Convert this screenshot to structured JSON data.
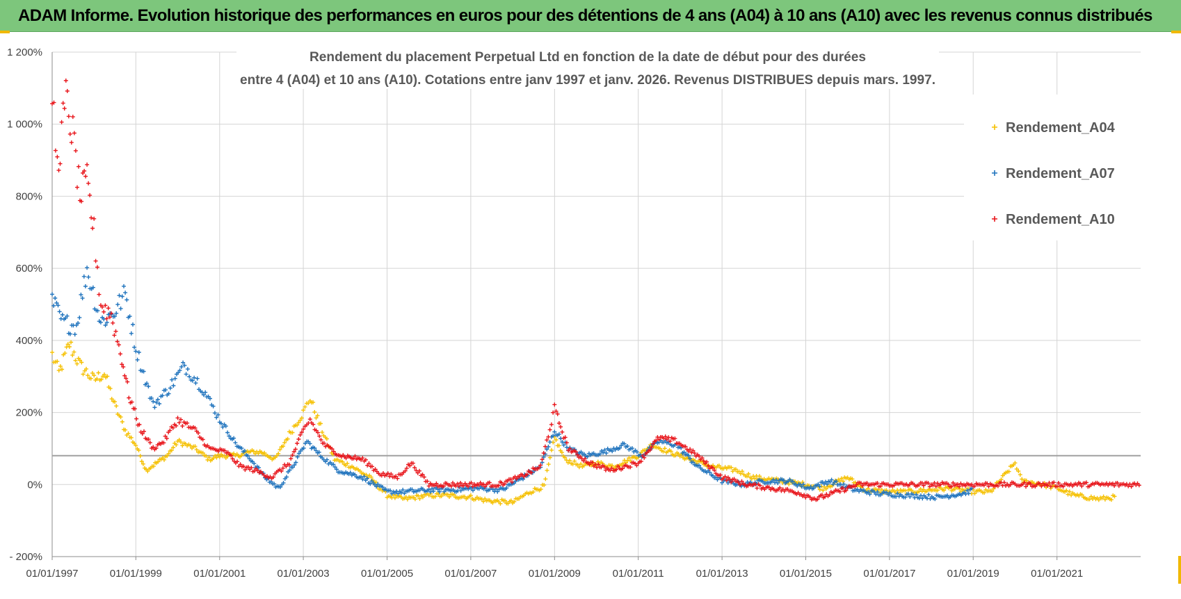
{
  "banner": {
    "title": "ADAM Informe. Evolution historique des performances en euros pour des détentions de 4 ans (A04) à 10 ans (A10) avec les revenus connus distribués"
  },
  "colors": {
    "banner": "#7dc67c",
    "A04": "#f5c000",
    "A07": "#1f73bd",
    "A10": "#e8141a",
    "grid": "#d4d4d4",
    "refline": "#a0a0a0"
  },
  "chart_data": {
    "type": "scatter",
    "title_lines": [
      "Rendement du placement Perpetual Ltd en fonction de la date de début pour des durées",
      "entre 4 (A04) et 10 ans (A10). Cotations entre janv 1997 et janv. 2026. Revenus DISTRIBUES depuis mars. 1997."
    ],
    "xlabel": "",
    "ylabel": "",
    "x_range": [
      "1997-01-01",
      "2023-01-01"
    ],
    "ylim": [
      -200,
      1200
    ],
    "y_ticks": [
      {
        "value": -200,
        "label": "- 200%"
      },
      {
        "value": 0,
        "label": "0%"
      },
      {
        "value": 200,
        "label": "200%"
      },
      {
        "value": 400,
        "label": "400%"
      },
      {
        "value": 600,
        "label": "600%"
      },
      {
        "value": 800,
        "label": "800%"
      },
      {
        "value": 1000,
        "label": "1 000%"
      },
      {
        "value": 1200,
        "label": "1 200%"
      }
    ],
    "x_ticks": [
      {
        "value": "1997-01-01",
        "label": "01/01/1997"
      },
      {
        "value": "1999-01-01",
        "label": "01/01/1999"
      },
      {
        "value": "2001-01-01",
        "label": "01/01/2001"
      },
      {
        "value": "2003-01-01",
        "label": "01/01/2003"
      },
      {
        "value": "2005-01-01",
        "label": "01/01/2005"
      },
      {
        "value": "2007-01-01",
        "label": "01/01/2007"
      },
      {
        "value": "2009-01-01",
        "label": "01/01/2009"
      },
      {
        "value": "2011-01-01",
        "label": "01/01/2011"
      },
      {
        "value": "2013-01-01",
        "label": "01/01/2013"
      },
      {
        "value": "2015-01-01",
        "label": "01/01/2015"
      },
      {
        "value": "2017-01-01",
        "label": "01/01/2017"
      },
      {
        "value": "2019-01-01",
        "label": "01/01/2019"
      },
      {
        "value": "2021-01-01",
        "label": "01/01/2021"
      }
    ],
    "reference_line": 80,
    "grid": true,
    "legend_position": "right",
    "marker": "+",
    "series": [
      {
        "name": "Rendement_A04",
        "color": "#f5c000",
        "points": [
          [
            "1997-01-01",
            360
          ],
          [
            "1997-03-01",
            310
          ],
          [
            "1997-06-01",
            390
          ],
          [
            "1997-09-01",
            330
          ],
          [
            "1998-01-01",
            290
          ],
          [
            "1998-04-01",
            310
          ],
          [
            "1998-07-01",
            220
          ],
          [
            "1998-10-01",
            150
          ],
          [
            "1999-01-01",
            110
          ],
          [
            "1999-04-01",
            40
          ],
          [
            "1999-07-01",
            60
          ],
          [
            "1999-10-01",
            80
          ],
          [
            "2000-01-01",
            120
          ],
          [
            "2000-06-01",
            100
          ],
          [
            "2000-10-01",
            70
          ],
          [
            "2001-01-01",
            80
          ],
          [
            "2001-06-01",
            80
          ],
          [
            "2001-09-01",
            90
          ],
          [
            "2002-01-01",
            90
          ],
          [
            "2002-05-01",
            70
          ],
          [
            "2002-09-01",
            140
          ],
          [
            "2003-01-01",
            200
          ],
          [
            "2003-03-01",
            240
          ],
          [
            "2003-06-01",
            160
          ],
          [
            "2003-10-01",
            70
          ],
          [
            "2004-03-01",
            50
          ],
          [
            "2004-08-01",
            20
          ],
          [
            "2005-01-01",
            -30
          ],
          [
            "2005-06-01",
            -40
          ],
          [
            "2006-01-01",
            -30
          ],
          [
            "2006-06-01",
            -30
          ],
          [
            "2007-01-01",
            -35
          ],
          [
            "2007-06-01",
            -45
          ],
          [
            "2008-01-01",
            -50
          ],
          [
            "2008-06-01",
            -20
          ],
          [
            "2008-10-01",
            -5
          ],
          [
            "2009-01-01",
            130
          ],
          [
            "2009-04-01",
            70
          ],
          [
            "2009-09-01",
            50
          ],
          [
            "2010-01-01",
            60
          ],
          [
            "2010-06-01",
            50
          ],
          [
            "2011-01-01",
            80
          ],
          [
            "2011-05-01",
            110
          ],
          [
            "2011-10-01",
            90
          ],
          [
            "2012-04-01",
            70
          ],
          [
            "2012-10-01",
            50
          ],
          [
            "2013-05-01",
            40
          ],
          [
            "2013-10-01",
            20
          ],
          [
            "2014-06-01",
            10
          ],
          [
            "2015-01-01",
            0
          ],
          [
            "2015-06-01",
            -10
          ],
          [
            "2016-01-01",
            20
          ],
          [
            "2016-06-01",
            -15
          ],
          [
            "2017-01-01",
            -20
          ],
          [
            "2017-06-01",
            -20
          ],
          [
            "2018-01-01",
            -15
          ],
          [
            "2018-06-01",
            -10
          ],
          [
            "2019-01-01",
            -20
          ],
          [
            "2019-06-01",
            -20
          ],
          [
            "2020-01-01",
            60
          ],
          [
            "2020-03-01",
            10
          ],
          [
            "2020-09-01",
            0
          ],
          [
            "2021-01-01",
            -10
          ],
          [
            "2021-06-01",
            -30
          ],
          [
            "2022-01-01",
            -40
          ],
          [
            "2022-06-01",
            -35
          ]
        ]
      },
      {
        "name": "Rendement_A07",
        "color": "#1f73bd",
        "points": [
          [
            "1997-01-01",
            510
          ],
          [
            "1997-04-01",
            450
          ],
          [
            "1997-08-01",
            440
          ],
          [
            "1997-11-01",
            600
          ],
          [
            "1998-03-01",
            450
          ],
          [
            "1998-07-01",
            480
          ],
          [
            "1998-10-01",
            530
          ],
          [
            "1999-01-01",
            380
          ],
          [
            "1999-06-01",
            220
          ],
          [
            "1999-10-01",
            260
          ],
          [
            "2000-03-01",
            330
          ],
          [
            "2000-08-01",
            270
          ],
          [
            "2001-01-01",
            180
          ],
          [
            "2001-06-01",
            110
          ],
          [
            "2001-10-01",
            70
          ],
          [
            "2002-02-01",
            20
          ],
          [
            "2002-06-01",
            -10
          ],
          [
            "2002-10-01",
            50
          ],
          [
            "2003-02-01",
            120
          ],
          [
            "2003-06-01",
            80
          ],
          [
            "2003-11-01",
            40
          ],
          [
            "2004-06-01",
            20
          ],
          [
            "2005-01-01",
            -20
          ],
          [
            "2005-06-01",
            -20
          ],
          [
            "2006-01-01",
            -15
          ],
          [
            "2006-08-01",
            -15
          ],
          [
            "2007-03-01",
            -10
          ],
          [
            "2007-10-01",
            -15
          ],
          [
            "2008-04-01",
            20
          ],
          [
            "2008-09-01",
            50
          ],
          [
            "2009-01-01",
            150
          ],
          [
            "2009-05-01",
            100
          ],
          [
            "2009-10-01",
            80
          ],
          [
            "2010-03-01",
            90
          ],
          [
            "2010-09-01",
            110
          ],
          [
            "2011-02-01",
            80
          ],
          [
            "2011-07-01",
            120
          ],
          [
            "2011-12-01",
            110
          ],
          [
            "2012-06-01",
            50
          ],
          [
            "2013-01-01",
            10
          ],
          [
            "2013-07-01",
            0
          ],
          [
            "2014-02-01",
            10
          ],
          [
            "2014-08-01",
            10
          ],
          [
            "2015-02-01",
            -10
          ],
          [
            "2015-08-01",
            10
          ],
          [
            "2016-03-01",
            -15
          ],
          [
            "2016-10-01",
            -25
          ],
          [
            "2017-06-01",
            -30
          ],
          [
            "2018-03-01",
            -35
          ],
          [
            "2018-10-01",
            -25
          ],
          [
            "2019-01-01",
            -15
          ]
        ]
      },
      {
        "name": "Rendement_A10",
        "color": "#e8141a",
        "points": [
          [
            "1997-01-01",
            1090
          ],
          [
            "1997-02-15",
            880
          ],
          [
            "1997-05-01",
            1070
          ],
          [
            "1997-07-01",
            970
          ],
          [
            "1997-09-01",
            800
          ],
          [
            "1997-11-01",
            840
          ],
          [
            "1998-01-01",
            700
          ],
          [
            "1998-03-01",
            500
          ],
          [
            "1998-06-01",
            470
          ],
          [
            "1998-09-01",
            350
          ],
          [
            "1998-11-01",
            250
          ],
          [
            "1999-02-01",
            160
          ],
          [
            "1999-06-01",
            100
          ],
          [
            "1999-09-01",
            120
          ],
          [
            "2000-01-01",
            180
          ],
          [
            "2000-06-01",
            150
          ],
          [
            "2000-10-01",
            100
          ],
          [
            "2001-03-01",
            90
          ],
          [
            "2001-07-01",
            50
          ],
          [
            "2001-11-01",
            40
          ],
          [
            "2002-04-01",
            20
          ],
          [
            "2002-09-01",
            60
          ],
          [
            "2003-01-01",
            150
          ],
          [
            "2003-03-01",
            180
          ],
          [
            "2003-07-01",
            110
          ],
          [
            "2003-12-01",
            80
          ],
          [
            "2004-06-01",
            70
          ],
          [
            "2004-11-01",
            30
          ],
          [
            "2005-04-01",
            20
          ],
          [
            "2005-08-01",
            60
          ],
          [
            "2006-01-01",
            0
          ],
          [
            "2006-07-01",
            0
          ],
          [
            "2007-02-01",
            0
          ],
          [
            "2007-09-01",
            0
          ],
          [
            "2008-03-01",
            20
          ],
          [
            "2008-09-01",
            50
          ],
          [
            "2009-01-01",
            210
          ],
          [
            "2009-05-01",
            100
          ],
          [
            "2009-11-01",
            60
          ],
          [
            "2010-05-01",
            40
          ],
          [
            "2011-01-01",
            60
          ],
          [
            "2011-07-01",
            130
          ],
          [
            "2011-12-01",
            120
          ],
          [
            "2012-06-01",
            80
          ],
          [
            "2013-01-01",
            20
          ],
          [
            "2013-08-01",
            0
          ],
          [
            "2014-03-01",
            -10
          ],
          [
            "2014-10-01",
            -20
          ],
          [
            "2015-04-01",
            -40
          ],
          [
            "2015-10-01",
            -20
          ],
          [
            "2016-04-01",
            0
          ],
          [
            "2017-01-01",
            0
          ],
          [
            "2018-01-01",
            0
          ],
          [
            "2019-01-01",
            0
          ],
          [
            "2020-01-01",
            0
          ],
          [
            "2021-01-01",
            0
          ],
          [
            "2022-01-01",
            0
          ],
          [
            "2023-01-01",
            0
          ]
        ]
      }
    ]
  }
}
